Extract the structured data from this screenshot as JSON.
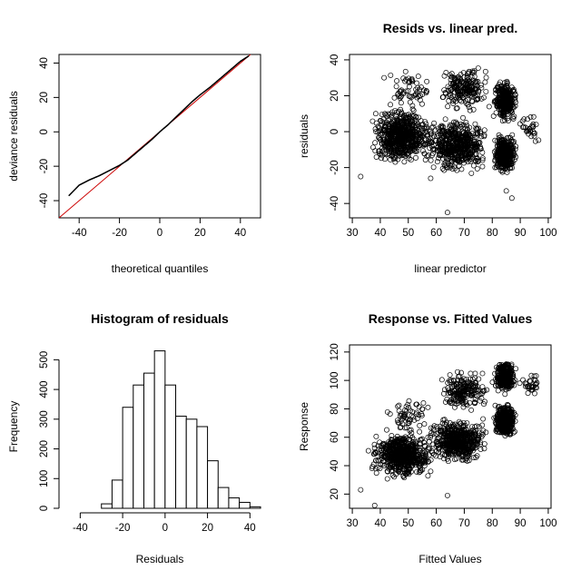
{
  "chart_data": [
    {
      "type": "scatter",
      "subtype": "qq",
      "title": "",
      "xlabel": "theoretical quantiles",
      "ylabel": "deviance residuals",
      "xlim": [
        -50,
        50
      ],
      "ylim": [
        -50,
        45
      ],
      "xticks": [
        -40,
        -20,
        0,
        20,
        40
      ],
      "yticks": [
        -40,
        -20,
        0,
        20,
        40
      ],
      "reference_line": {
        "slope": 1,
        "intercept": 0,
        "color": "#cc0000"
      },
      "points": [
        [
          -45,
          -37
        ],
        [
          -40,
          -31
        ],
        [
          -35,
          -28
        ],
        [
          -30,
          -25.5
        ],
        [
          -25,
          -22.5
        ],
        [
          -20,
          -19.5
        ],
        [
          -16,
          -16.5
        ],
        [
          -12,
          -12.5
        ],
        [
          -8,
          -8.5
        ],
        [
          -4,
          -4.5
        ],
        [
          0,
          0
        ],
        [
          4,
          4
        ],
        [
          8,
          8.5
        ],
        [
          12,
          13
        ],
        [
          16,
          17.5
        ],
        [
          20,
          21.5
        ],
        [
          25,
          26
        ],
        [
          30,
          31
        ],
        [
          35,
          36
        ],
        [
          40,
          41
        ],
        [
          44,
          44
        ]
      ]
    },
    {
      "type": "scatter",
      "title": "Resids vs. linear pred.",
      "xlabel": "linear predictor",
      "ylabel": "residuals",
      "xlim": [
        29,
        101
      ],
      "ylim": [
        -48,
        43
      ],
      "xticks": [
        30,
        40,
        50,
        60,
        70,
        80,
        90,
        100
      ],
      "yticks": [
        -40,
        -20,
        0,
        20,
        40
      ],
      "clusters": [
        {
          "x": [
            35,
            60
          ],
          "y": [
            -20,
            15
          ],
          "n": 650
        },
        {
          "x": [
            55,
            80
          ],
          "y": [
            -25,
            10
          ],
          "n": 550
        },
        {
          "x": [
            60,
            80
          ],
          "y": [
            8,
            38
          ],
          "n": 200
        },
        {
          "x": [
            80,
            89
          ],
          "y": [
            -25,
            0
          ],
          "n": 400
        },
        {
          "x": [
            80,
            89
          ],
          "y": [
            5,
            30
          ],
          "n": 350
        },
        {
          "x": [
            40,
            60
          ],
          "y": [
            10,
            35
          ],
          "n": 60
        },
        {
          "x": [
            89,
            98
          ],
          "y": [
            -10,
            15
          ],
          "n": 30
        }
      ],
      "outliers": [
        [
          64,
          -45
        ],
        [
          87,
          -37
        ],
        [
          33,
          -25
        ],
        [
          58,
          -26
        ],
        [
          85,
          -33
        ]
      ]
    },
    {
      "type": "bar",
      "subtype": "histogram",
      "title": "Histogram of residuals",
      "xlabel": "Residuals",
      "ylabel": "Frequency",
      "xlim": [
        -50,
        45
      ],
      "ylim": [
        0,
        550
      ],
      "xticks": [
        -40,
        -20,
        0,
        20,
        40
      ],
      "yticks": [
        0,
        100,
        200,
        300,
        400,
        500
      ],
      "bin_edges": [
        -50,
        -45,
        -40,
        -35,
        -30,
        -25,
        -20,
        -15,
        -10,
        -5,
        0,
        5,
        10,
        15,
        20,
        25,
        30,
        35,
        40,
        45
      ],
      "values": [
        0,
        0,
        0,
        0,
        15,
        95,
        340,
        415,
        455,
        530,
        415,
        310,
        300,
        275,
        160,
        70,
        35,
        20,
        5
      ]
    },
    {
      "type": "scatter",
      "title": "Response vs. Fitted Values",
      "xlabel": "Fitted Values",
      "ylabel": "Response",
      "xlim": [
        29,
        101
      ],
      "ylim": [
        10,
        125
      ],
      "xticks": [
        30,
        40,
        50,
        60,
        70,
        80,
        90,
        100
      ],
      "yticks": [
        20,
        40,
        60,
        80,
        100,
        120
      ],
      "clusters": [
        {
          "x": [
            35,
            60
          ],
          "y": [
            30,
            65
          ],
          "n": 650
        },
        {
          "x": [
            55,
            80
          ],
          "y": [
            40,
            75
          ],
          "n": 550
        },
        {
          "x": [
            60,
            80
          ],
          "y": [
            75,
            110
          ],
          "n": 200
        },
        {
          "x": [
            80,
            89
          ],
          "y": [
            58,
            85
          ],
          "n": 400
        },
        {
          "x": [
            80,
            89
          ],
          "y": [
            90,
            115
          ],
          "n": 350
        },
        {
          "x": [
            40,
            60
          ],
          "y": [
            60,
            90
          ],
          "n": 60
        },
        {
          "x": [
            89,
            98
          ],
          "y": [
            85,
            108
          ],
          "n": 30
        }
      ],
      "outliers": [
        [
          64,
          19
        ],
        [
          38,
          12
        ],
        [
          33,
          23
        ],
        [
          58,
          36
        ],
        [
          95,
          103
        ]
      ]
    }
  ]
}
